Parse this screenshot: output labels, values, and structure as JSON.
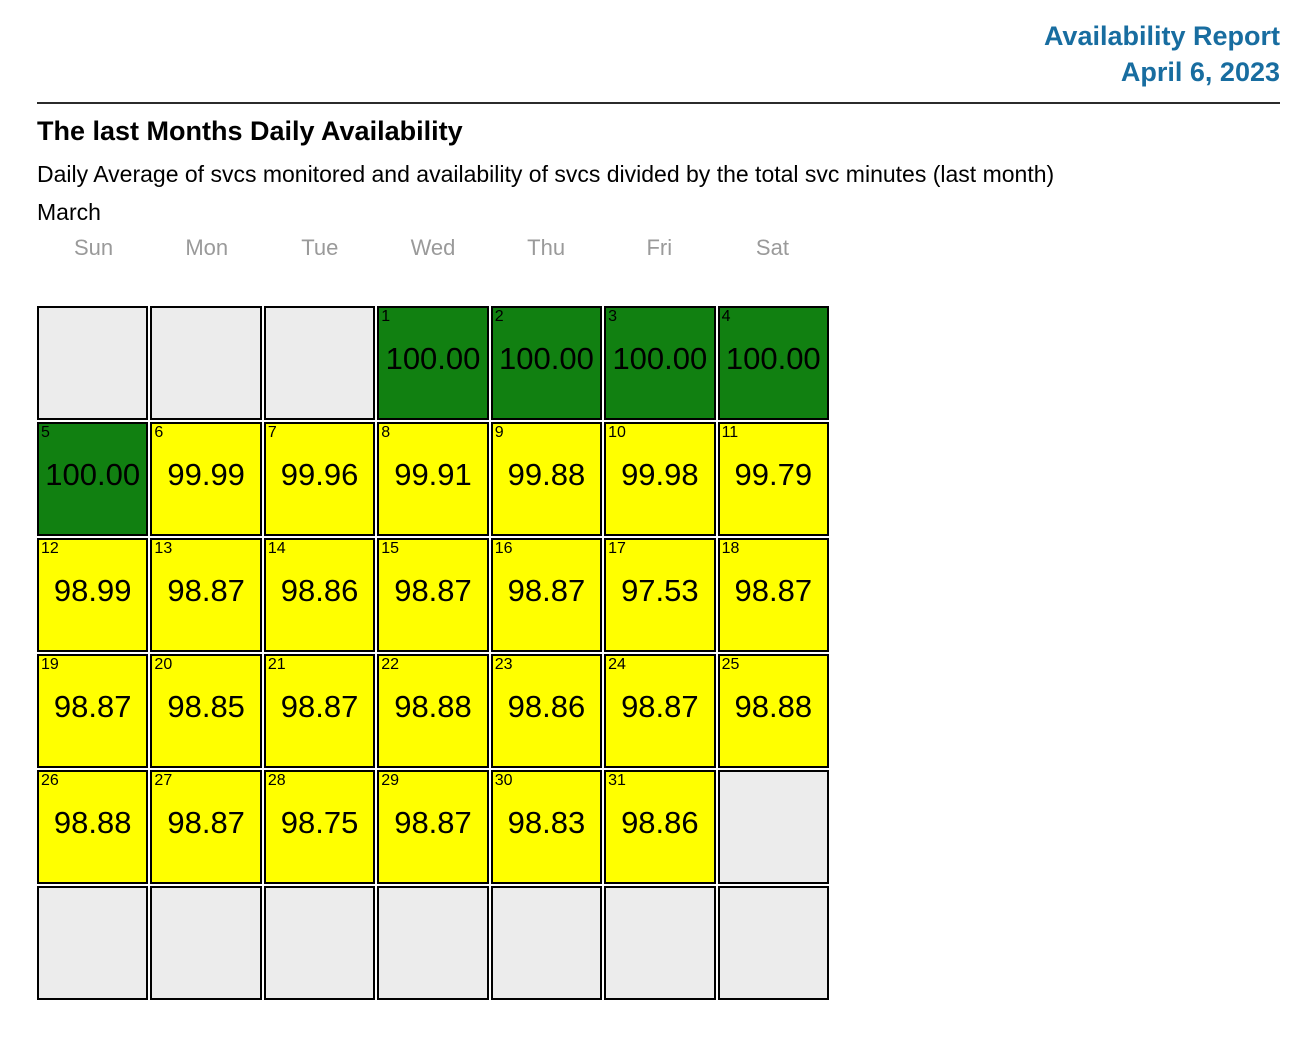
{
  "header": {
    "title": "Availability Report",
    "date": "April 6, 2023",
    "accent_color": "#186DA0"
  },
  "section": {
    "heading": "The last Months Daily Availability",
    "description": "Daily Average of svcs monitored and availability of svcs divided by the total svc minutes (last month)",
    "month": "March"
  },
  "calendar": {
    "weekdays": [
      "Sun",
      "Mon",
      "Tue",
      "Wed",
      "Thu",
      "Fri",
      "Sat"
    ],
    "colors": {
      "high": "#118011",
      "mid": "#FFFF00",
      "empty": "#ECECEC"
    },
    "weeks": [
      [
        {
          "state": "empty"
        },
        {
          "state": "empty"
        },
        {
          "state": "empty"
        },
        {
          "day": 1,
          "value": "100.00",
          "state": "high"
        },
        {
          "day": 2,
          "value": "100.00",
          "state": "high"
        },
        {
          "day": 3,
          "value": "100.00",
          "state": "high"
        },
        {
          "day": 4,
          "value": "100.00",
          "state": "high"
        }
      ],
      [
        {
          "day": 5,
          "value": "100.00",
          "state": "high"
        },
        {
          "day": 6,
          "value": "99.99",
          "state": "mid"
        },
        {
          "day": 7,
          "value": "99.96",
          "state": "mid"
        },
        {
          "day": 8,
          "value": "99.91",
          "state": "mid"
        },
        {
          "day": 9,
          "value": "99.88",
          "state": "mid"
        },
        {
          "day": 10,
          "value": "99.98",
          "state": "mid"
        },
        {
          "day": 11,
          "value": "99.79",
          "state": "mid"
        }
      ],
      [
        {
          "day": 12,
          "value": "98.99",
          "state": "mid"
        },
        {
          "day": 13,
          "value": "98.87",
          "state": "mid"
        },
        {
          "day": 14,
          "value": "98.86",
          "state": "mid"
        },
        {
          "day": 15,
          "value": "98.87",
          "state": "mid"
        },
        {
          "day": 16,
          "value": "98.87",
          "state": "mid"
        },
        {
          "day": 17,
          "value": "97.53",
          "state": "mid"
        },
        {
          "day": 18,
          "value": "98.87",
          "state": "mid"
        }
      ],
      [
        {
          "day": 19,
          "value": "98.87",
          "state": "mid"
        },
        {
          "day": 20,
          "value": "98.85",
          "state": "mid"
        },
        {
          "day": 21,
          "value": "98.87",
          "state": "mid"
        },
        {
          "day": 22,
          "value": "98.88",
          "state": "mid"
        },
        {
          "day": 23,
          "value": "98.86",
          "state": "mid"
        },
        {
          "day": 24,
          "value": "98.87",
          "state": "mid"
        },
        {
          "day": 25,
          "value": "98.88",
          "state": "mid"
        }
      ],
      [
        {
          "day": 26,
          "value": "98.88",
          "state": "mid"
        },
        {
          "day": 27,
          "value": "98.87",
          "state": "mid"
        },
        {
          "day": 28,
          "value": "98.75",
          "state": "mid"
        },
        {
          "day": 29,
          "value": "98.87",
          "state": "mid"
        },
        {
          "day": 30,
          "value": "98.83",
          "state": "mid"
        },
        {
          "day": 31,
          "value": "98.86",
          "state": "mid"
        },
        {
          "state": "empty"
        }
      ],
      [
        {
          "state": "empty"
        },
        {
          "state": "empty"
        },
        {
          "state": "empty"
        },
        {
          "state": "empty"
        },
        {
          "state": "empty"
        },
        {
          "state": "empty"
        },
        {
          "state": "empty"
        }
      ]
    ]
  },
  "chart_data": {
    "type": "heatmap",
    "title": "The last Months Daily Availability",
    "subtitle": "Daily Average of svcs monitored and availability of svcs divided by the total svc minutes (last month)",
    "month": "March",
    "layout": "calendar, weeks as rows, columns Sun-Sat, March 1 falls on Wednesday",
    "unit": "availability percent",
    "days": [
      1,
      2,
      3,
      4,
      5,
      6,
      7,
      8,
      9,
      10,
      11,
      12,
      13,
      14,
      15,
      16,
      17,
      18,
      19,
      20,
      21,
      22,
      23,
      24,
      25,
      26,
      27,
      28,
      29,
      30,
      31
    ],
    "values": [
      100.0,
      100.0,
      100.0,
      100.0,
      100.0,
      99.99,
      99.96,
      99.91,
      99.88,
      99.98,
      99.79,
      98.99,
      98.87,
      98.86,
      98.87,
      98.87,
      97.53,
      98.87,
      98.87,
      98.85,
      98.87,
      98.88,
      98.86,
      98.87,
      98.88,
      98.88,
      98.87,
      98.75,
      98.87,
      98.83,
      98.86
    ],
    "color_coding": {
      "green #118011": "value = 100.00",
      "yellow #FFFF00": "value < 100.00",
      "gray #ECECEC": "no data / outside month"
    }
  }
}
